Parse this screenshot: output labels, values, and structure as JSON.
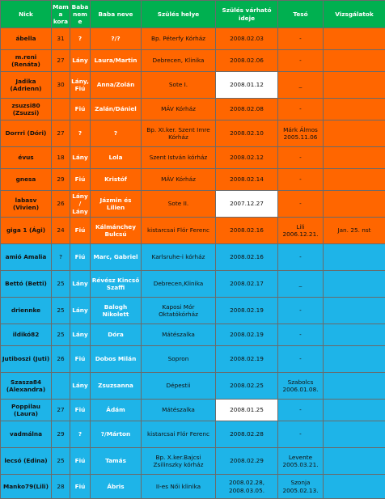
{
  "table": {
    "headers": [
      "Nick",
      "Mama kora",
      "Baba neme",
      "Baba neve",
      "Szülés helye",
      "Szülés várható ideje",
      "Tesó",
      "Vizsgálatok"
    ],
    "rows": [
      {
        "nick": "ábella",
        "age": "31",
        "gender": "?",
        "baby": "?/?",
        "place": "Bp. Péterfy Kórház",
        "due": "2008.02.03",
        "sibling": "-",
        "exams": "",
        "highlight_due": false,
        "group": "orange"
      },
      {
        "nick": "m.reni (Renáta)",
        "age": "27",
        "gender": "Lány",
        "baby": "Laura/Martin",
        "place": "Debrecen, Klinika",
        "due": "2008.02.06",
        "sibling": "-",
        "exams": "",
        "highlight_due": false,
        "group": "orange"
      },
      {
        "nick": "Jadika (Adrienn)",
        "age": "30",
        "gender": "Lány, Fiú",
        "baby": "Anna/Zolán",
        "place": "Sote I.",
        "due": "2008.01.12",
        "sibling": "_",
        "exams": "",
        "highlight_due": true,
        "group": "orange"
      },
      {
        "nick": "zsuzsi80 (Zsuzsi)",
        "age": "",
        "gender": "Fiú",
        "baby": "Zalán/Dániel",
        "place": "MÁV Kórház",
        "due": "2008.02.08",
        "sibling": "-",
        "exams": "",
        "highlight_due": false,
        "group": "orange"
      },
      {
        "nick": "Dorrri (Dóri)",
        "age": "27",
        "gender": "?",
        "baby": "?",
        "place": "Bp. XI.ker. Szent Imre Kórház",
        "due": "2008.02.10",
        "sibling": "Márk Álmos 2005.11.06",
        "exams": "",
        "highlight_due": false,
        "group": "orange"
      },
      {
        "nick": "évus",
        "age": "18",
        "gender": "Lány",
        "baby": "Lola",
        "place": "Szent István kórház",
        "due": "2008.02.12",
        "sibling": "-",
        "exams": "",
        "highlight_due": false,
        "group": "orange"
      },
      {
        "nick": "gnesa",
        "age": "29",
        "gender": "Fiú",
        "baby": "Kristóf",
        "place": "MÁV Kórház",
        "due": "2008.02.14",
        "sibling": "-",
        "exams": "",
        "highlight_due": false,
        "group": "orange"
      },
      {
        "nick": "labasv (Vivien)",
        "age": "26",
        "gender": "Lány/ Lány",
        "baby": "Jázmin és Lilien",
        "place": "Sote II.",
        "due": "2007.12.27",
        "sibling": "-",
        "exams": "",
        "highlight_due": true,
        "group": "orange"
      },
      {
        "nick": "giga 1 (Ági)",
        "age": "24",
        "gender": "Fiú",
        "baby": "Kálmánchey Bulcsú",
        "place": "kistarcsai Flór Ferenc",
        "due": "2008.02.16",
        "sibling": "Lili 2006.12.21.",
        "exams": "Jan. 25. nst",
        "highlight_due": false,
        "group": "orange"
      },
      {
        "nick": "amió Amalia",
        "age": "?",
        "gender": "Fiú",
        "baby": "Marc, Gabriel",
        "place": "Karlsruhe-i kórház",
        "due": "2008.02.16",
        "sibling": "-",
        "exams": "",
        "highlight_due": false,
        "group": "cyan"
      },
      {
        "nick": "Bettó (Betti)",
        "age": "25",
        "gender": "Lány",
        "baby": "Révész Kincső Szaffi",
        "place": "Debrecen,Klinika",
        "due": "2008.02.17",
        "sibling": "_",
        "exams": "",
        "highlight_due": false,
        "group": "cyan"
      },
      {
        "nick": "driennke",
        "age": "25",
        "gender": "Lány",
        "baby": "Balogh Nikolett",
        "place": "Kaposi Mór Oktatókórház",
        "due": "2008.02.19",
        "sibling": "-",
        "exams": "",
        "highlight_due": false,
        "group": "cyan"
      },
      {
        "nick": "ildikó82",
        "age": "25",
        "gender": "Lány",
        "baby": "Dóra",
        "place": "Mátészalka",
        "due": "2008.02.19",
        "sibling": "-",
        "exams": "",
        "highlight_due": false,
        "group": "cyan"
      },
      {
        "nick": "Jutiboszi (Juti)",
        "age": "26",
        "gender": "Fiú",
        "baby": "Dobos Milán",
        "place": "Sopron",
        "due": "2008.02.19",
        "sibling": "-",
        "exams": "",
        "highlight_due": false,
        "group": "cyan"
      },
      {
        "nick": "Szasza84 (Alexandra)",
        "age": "",
        "gender": "Lány",
        "baby": "Zsuzsanna",
        "place": "Dépestii",
        "due": "2008.02.25",
        "sibling": "Szabolcs 2006.01.08.",
        "exams": "",
        "highlight_due": false,
        "group": "cyan"
      },
      {
        "nick": "Poppilau (Laura)",
        "age": "27",
        "gender": "Fiú",
        "baby": "Ádám",
        "place": "Mátészalka",
        "due": "2008.01.25",
        "sibling": "-",
        "exams": "",
        "highlight_due": true,
        "group": "cyan"
      },
      {
        "nick": "vadmálna",
        "age": "29",
        "gender": "?",
        "baby": "?/Márton",
        "place": "kistarcsai Flór Ferenc",
        "due": "2008.02.28",
        "sibling": "-",
        "exams": "",
        "highlight_due": false,
        "group": "cyan"
      },
      {
        "nick": "lecsó (Edina)",
        "age": "25",
        "gender": "Fiú",
        "baby": "Tamás",
        "place": "Bp. X.ker.Bajcsi Zsilinszky kórház",
        "due": "2008.02.29",
        "sibling": "Levente 2005.03.21.",
        "exams": "",
        "highlight_due": false,
        "group": "cyan"
      },
      {
        "nick": "Manko79(Lili)",
        "age": "28",
        "gender": "Fiú",
        "baby": "Ábris",
        "place": "II-es Női klinika",
        "due": "2008.02.28, 2008.03.05.",
        "sibling": "Szonja 2005.02.13.",
        "exams": "",
        "highlight_due": false,
        "group": "cyan"
      }
    ]
  },
  "colors": {
    "header": "#00b050",
    "orange_rows": "#ff6600",
    "cyan_rows": "#1eb4e8",
    "highlight_date": "#ffffff"
  }
}
